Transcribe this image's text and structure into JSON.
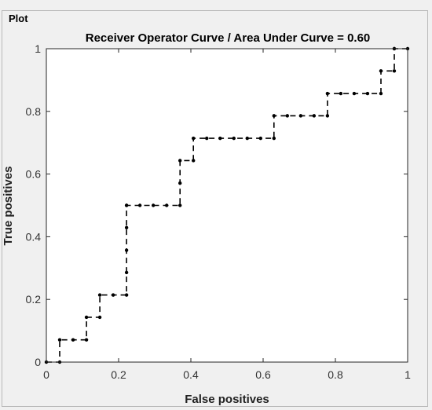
{
  "panel": {
    "title": "Plot"
  },
  "chart_data": {
    "type": "line",
    "title": "Receiver Operator Curve / Area Under Curve = 0.60",
    "xlabel": "False positives",
    "ylabel": "True positives",
    "xlim": [
      0,
      1
    ],
    "ylim": [
      0,
      1
    ],
    "xticks": [
      "0",
      "0.2",
      "0.4",
      "0.6",
      "0.8",
      "1"
    ],
    "yticks": [
      "0",
      "0.2",
      "0.4",
      "0.6",
      "0.8",
      "1"
    ],
    "grid": false,
    "line_style": "dashed-step-with-markers",
    "series": [
      {
        "color": "#000000",
        "x": [
          0,
          0.037,
          0.037,
          0.074,
          0.111,
          0.111,
          0.148,
          0.148,
          0.185,
          0.222,
          0.222,
          0.222,
          0.222,
          0.222,
          0.222,
          0.259,
          0.296,
          0.333,
          0.37,
          0.37,
          0.37,
          0.407,
          0.407,
          0.444,
          0.481,
          0.519,
          0.556,
          0.593,
          0.63,
          0.63,
          0.667,
          0.704,
          0.741,
          0.778,
          0.778,
          0.815,
          0.852,
          0.889,
          0.926,
          0.926,
          0.963,
          0.963,
          0.963,
          1.0
        ],
        "y": [
          0,
          0,
          0.071,
          0.071,
          0.071,
          0.143,
          0.143,
          0.214,
          0.214,
          0.214,
          0.286,
          0.357,
          0.429,
          0.5,
          0.5,
          0.5,
          0.5,
          0.5,
          0.5,
          0.571,
          0.643,
          0.643,
          0.714,
          0.714,
          0.714,
          0.714,
          0.714,
          0.714,
          0.714,
          0.786,
          0.786,
          0.786,
          0.786,
          0.786,
          0.857,
          0.857,
          0.857,
          0.857,
          0.857,
          0.929,
          0.929,
          1.0,
          1.0,
          1.0
        ]
      }
    ]
  }
}
